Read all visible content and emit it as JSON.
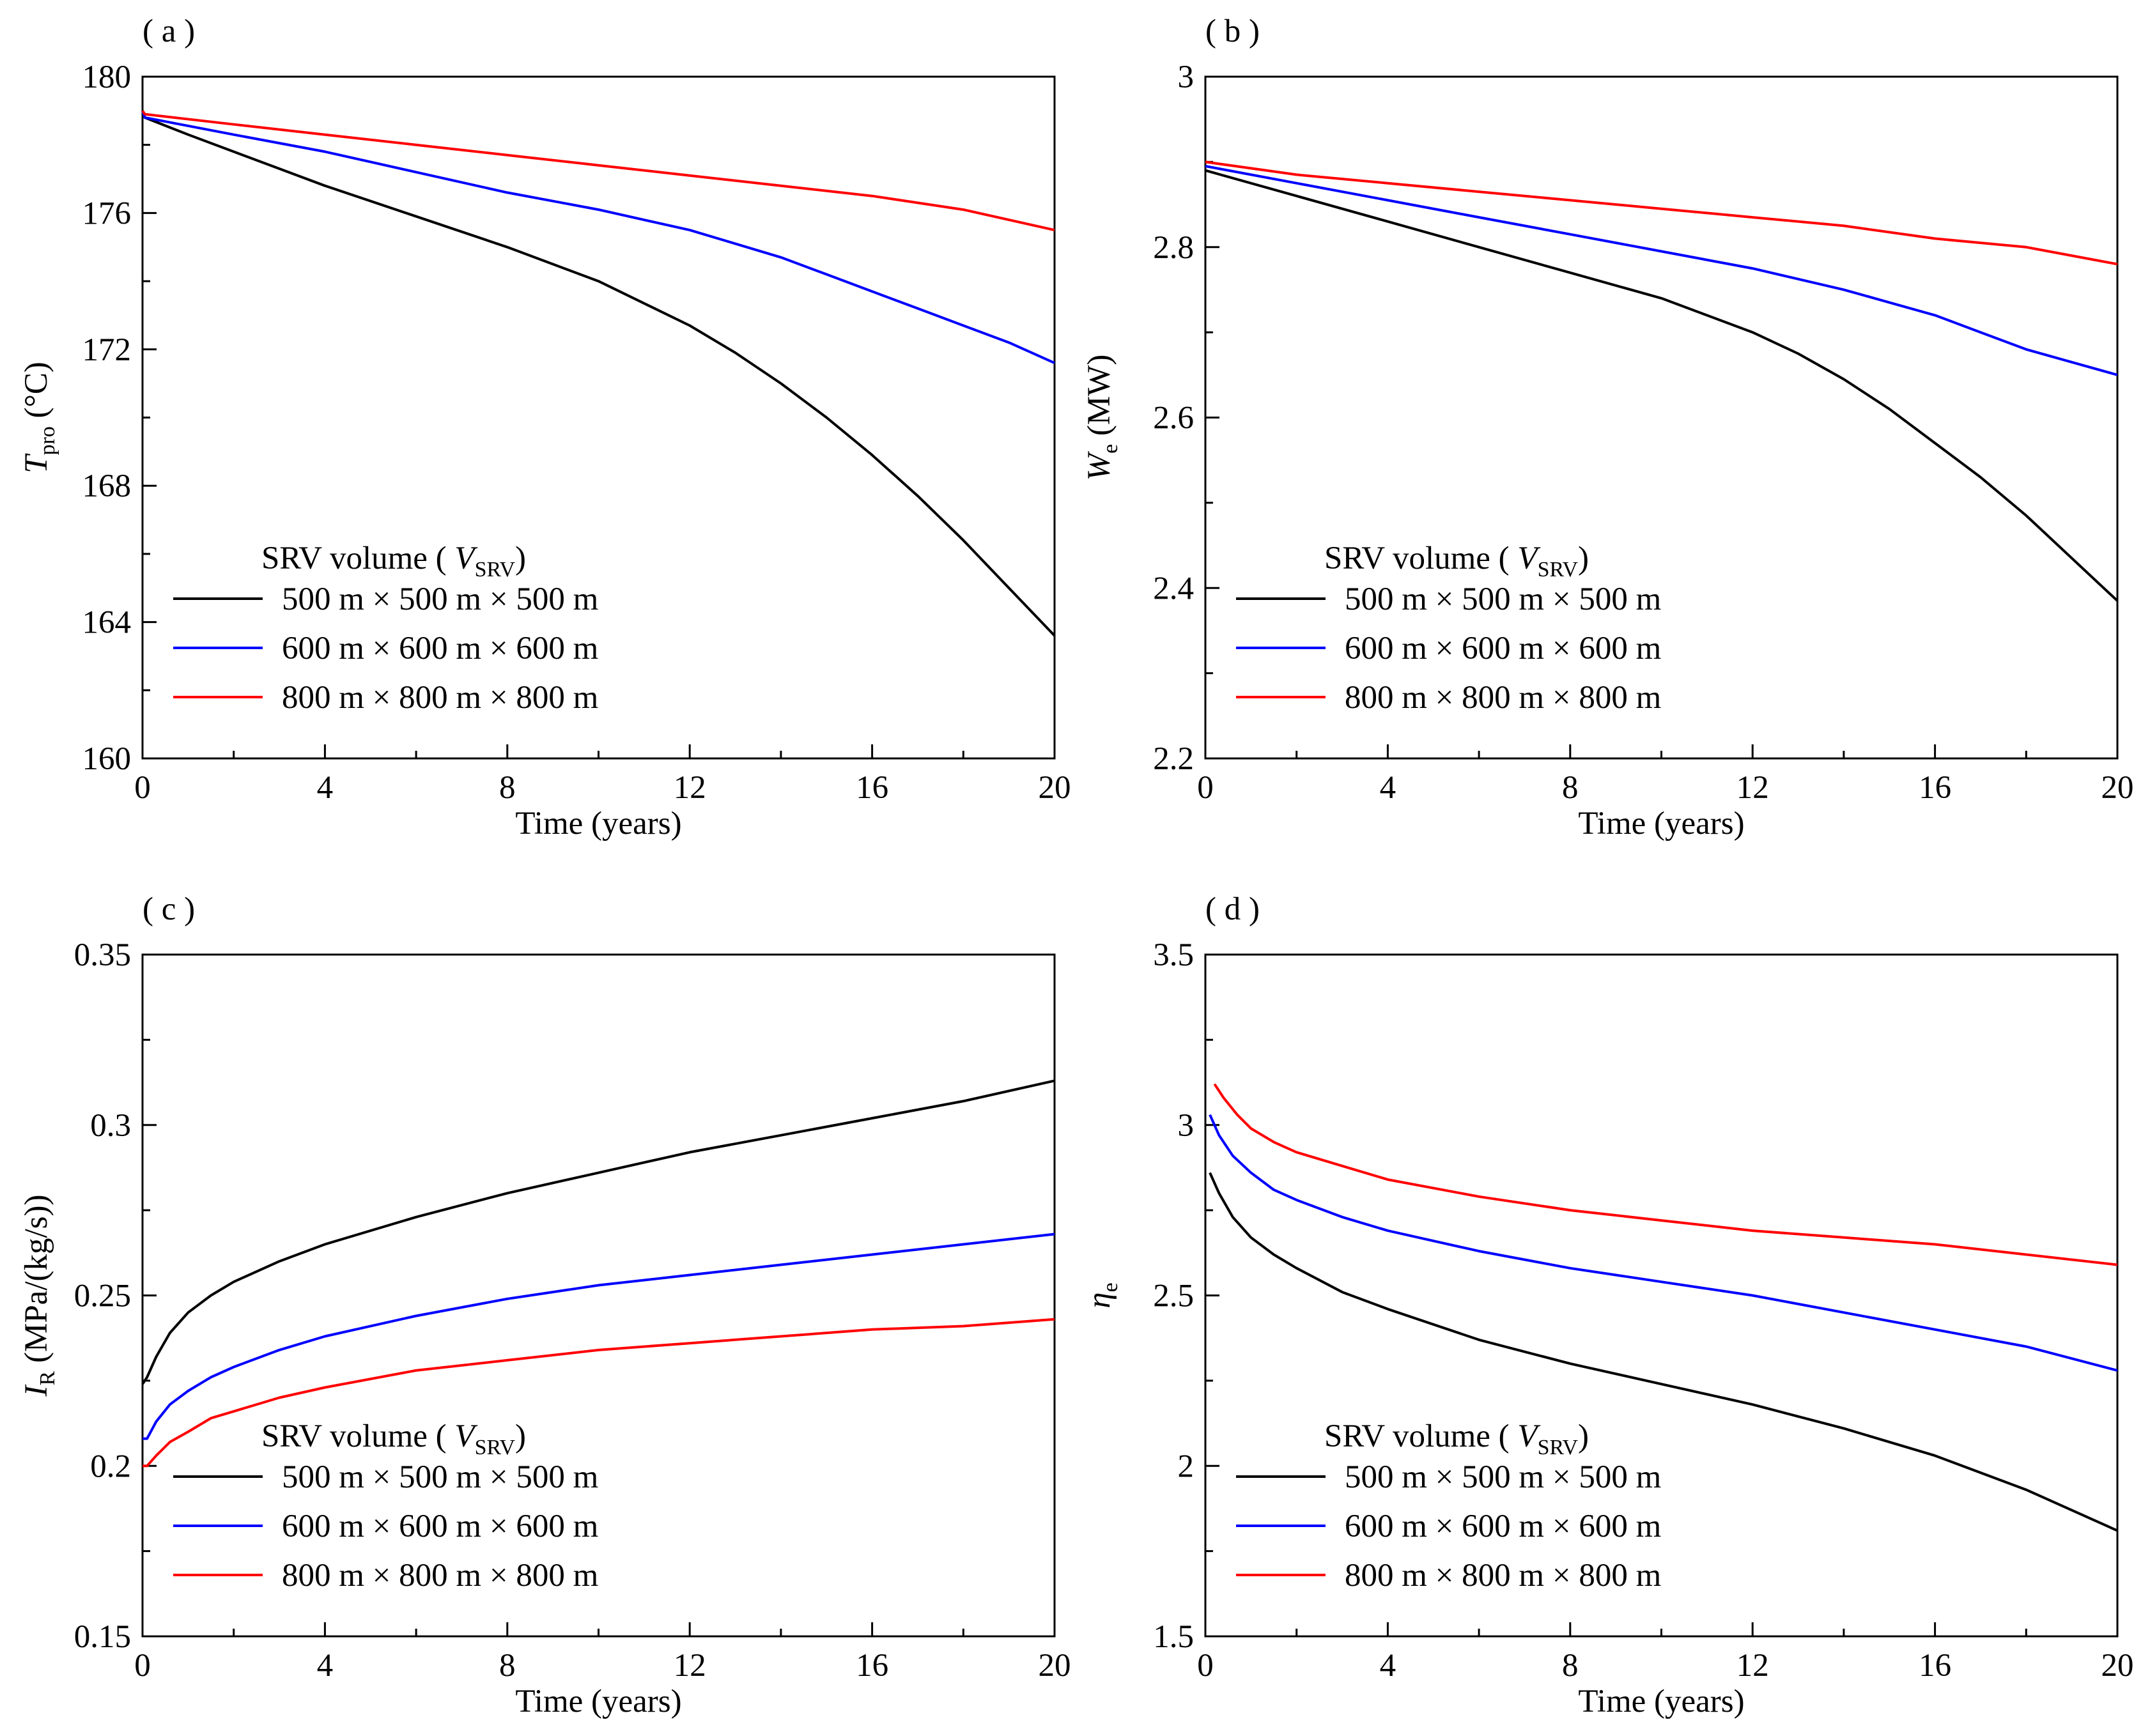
{
  "chart_data": [
    {
      "type": "line",
      "panel_label": "( a )",
      "xlabel": "Time (years)",
      "ylabel": {
        "main": "T",
        "sub": "pro",
        "unit": " (°C)"
      },
      "xlim": [
        0,
        20
      ],
      "ylim": [
        160,
        180
      ],
      "xticks": [
        0,
        4,
        8,
        12,
        16,
        20
      ],
      "xtick_labels": [
        "0",
        "4",
        "8",
        "12",
        "16",
        "20"
      ],
      "yticks": [
        160,
        164,
        168,
        172,
        176,
        180
      ],
      "ytick_labels": [
        "160",
        "164",
        "168",
        "172",
        "176",
        "180"
      ],
      "legend": {
        "title": "SRV volume (",
        "title_var": "V",
        "title_sub": "SRV",
        "title_end": ")",
        "placement": "lower-left"
      },
      "series": [
        {
          "name": "500 m × 500 m × 500 m",
          "color": "#000000",
          "x": [
            0,
            0.05,
            1,
            2,
            3,
            4,
            6,
            8,
            10,
            12,
            13,
            14,
            15,
            16,
            17,
            18,
            19,
            20
          ],
          "y": [
            179.0,
            178.8,
            178.3,
            177.8,
            177.3,
            176.8,
            175.9,
            175.0,
            174.0,
            172.7,
            171.9,
            171.0,
            170.0,
            168.9,
            167.7,
            166.4,
            165.0,
            163.6
          ]
        },
        {
          "name": "600 m × 600 m × 600 m",
          "color": "#0000ff",
          "x": [
            0,
            0.05,
            2,
            4,
            6,
            8,
            10,
            12,
            13,
            14,
            15,
            16,
            17,
            18,
            19,
            20
          ],
          "y": [
            179.0,
            178.8,
            178.3,
            177.8,
            177.2,
            176.6,
            176.1,
            175.5,
            175.1,
            174.7,
            174.2,
            173.7,
            173.2,
            172.7,
            172.2,
            171.6
          ]
        },
        {
          "name": "800 m × 800 m × 800 m",
          "color": "#ff0000",
          "x": [
            0,
            0.05,
            2,
            4,
            6,
            8,
            10,
            12,
            14,
            16,
            18,
            20
          ],
          "y": [
            179.0,
            178.9,
            178.6,
            178.3,
            178.0,
            177.7,
            177.4,
            177.1,
            176.8,
            176.5,
            176.1,
            175.5
          ]
        }
      ]
    },
    {
      "type": "line",
      "panel_label": "( b )",
      "xlabel": "Time (years)",
      "ylabel": {
        "main": "W",
        "sub": "e",
        "unit": " (MW)"
      },
      "xlim": [
        0,
        20
      ],
      "ylim": [
        2.2,
        3.0
      ],
      "xticks": [
        0,
        4,
        8,
        12,
        16,
        20
      ],
      "xtick_labels": [
        "0",
        "4",
        "8",
        "12",
        "16",
        "20"
      ],
      "yticks": [
        2.2,
        2.4,
        2.6,
        2.8,
        3.0
      ],
      "ytick_labels": [
        "2.2",
        "2.4",
        "2.6",
        "2.8",
        "3"
      ],
      "legend": {
        "title": "SRV volume (",
        "title_var": "V",
        "title_sub": "SRV",
        "title_end": ")",
        "placement": "lower-left"
      },
      "series": [
        {
          "name": "500 m × 500 m × 500 m",
          "color": "#000000",
          "x": [
            0,
            2,
            4,
            6,
            8,
            10,
            12,
            13,
            14,
            15,
            16,
            17,
            18,
            19,
            20
          ],
          "y": [
            2.89,
            2.86,
            2.83,
            2.8,
            2.77,
            2.74,
            2.7,
            2.675,
            2.645,
            2.61,
            2.57,
            2.53,
            2.485,
            2.435,
            2.385
          ]
        },
        {
          "name": "600 m × 600 m × 600 m",
          "color": "#0000ff",
          "x": [
            0,
            2,
            4,
            6,
            8,
            10,
            12,
            14,
            15,
            16,
            17,
            18,
            19,
            20
          ],
          "y": [
            2.895,
            2.875,
            2.855,
            2.835,
            2.815,
            2.795,
            2.775,
            2.75,
            2.735,
            2.72,
            2.7,
            2.68,
            2.665,
            2.65
          ]
        },
        {
          "name": "800 m × 800 m × 800 m",
          "color": "#ff0000",
          "x": [
            0,
            2,
            4,
            6,
            8,
            10,
            12,
            14,
            16,
            18,
            20
          ],
          "y": [
            2.9,
            2.885,
            2.875,
            2.865,
            2.855,
            2.845,
            2.835,
            2.825,
            2.81,
            2.8,
            2.78
          ]
        }
      ]
    },
    {
      "type": "line",
      "panel_label": "( c )",
      "xlabel": "Time (years)",
      "ylabel": {
        "main": "I",
        "sub": "R",
        "unit": " (MPa/(kg/s))"
      },
      "xlim": [
        0,
        20
      ],
      "ylim": [
        0.15,
        0.35
      ],
      "xticks": [
        0,
        4,
        8,
        12,
        16,
        20
      ],
      "xtick_labels": [
        "0",
        "4",
        "8",
        "12",
        "16",
        "20"
      ],
      "yticks": [
        0.15,
        0.2,
        0.25,
        0.3,
        0.35
      ],
      "ytick_labels": [
        "0.15",
        "0.2",
        "0.25",
        "0.3",
        "0.35"
      ],
      "legend": {
        "title": "SRV volume (",
        "title_var": "V",
        "title_sub": "SRV",
        "title_end": ")",
        "placement": "lower-left"
      },
      "series": [
        {
          "name": "500 m × 500 m × 500 m",
          "color": "#000000",
          "x": [
            0,
            0.1,
            0.3,
            0.6,
            1,
            1.5,
            2,
            3,
            4,
            6,
            8,
            10,
            12,
            14,
            16,
            18,
            20
          ],
          "y": [
            0.224,
            0.226,
            0.232,
            0.239,
            0.245,
            0.25,
            0.254,
            0.26,
            0.265,
            0.273,
            0.28,
            0.286,
            0.292,
            0.297,
            0.302,
            0.307,
            0.313
          ]
        },
        {
          "name": "600 m × 600 m × 600 m",
          "color": "#0000ff",
          "x": [
            0,
            0.1,
            0.3,
            0.6,
            1,
            1.5,
            2,
            3,
            4,
            6,
            8,
            10,
            12,
            14,
            16,
            18,
            20
          ],
          "y": [
            0.208,
            0.208,
            0.213,
            0.218,
            0.222,
            0.226,
            0.229,
            0.234,
            0.238,
            0.244,
            0.249,
            0.253,
            0.256,
            0.259,
            0.262,
            0.265,
            0.268
          ]
        },
        {
          "name": "800 m × 800 m × 800 m",
          "color": "#ff0000",
          "x": [
            0,
            0.1,
            0.3,
            0.6,
            1,
            1.5,
            2,
            3,
            4,
            6,
            8,
            10,
            12,
            14,
            16,
            18,
            20
          ],
          "y": [
            0.2,
            0.2,
            0.203,
            0.207,
            0.21,
            0.214,
            0.216,
            0.22,
            0.223,
            0.228,
            0.231,
            0.234,
            0.236,
            0.238,
            0.24,
            0.241,
            0.243
          ]
        }
      ]
    },
    {
      "type": "line",
      "panel_label": "( d )",
      "xlabel": "Time (years)",
      "ylabel": {
        "main": "η",
        "sub": "e",
        "unit": ""
      },
      "xlim": [
        0,
        20
      ],
      "ylim": [
        1.5,
        3.5
      ],
      "xticks": [
        0,
        4,
        8,
        12,
        16,
        20
      ],
      "xtick_labels": [
        "0",
        "4",
        "8",
        "12",
        "16",
        "20"
      ],
      "yticks": [
        1.5,
        2.0,
        2.5,
        3.0,
        3.5
      ],
      "ytick_labels": [
        "1.5",
        "2",
        "2.5",
        "3",
        "3.5"
      ],
      "legend": {
        "title": "SRV volume (",
        "title_var": "V",
        "title_sub": "SRV",
        "title_end": ")",
        "placement": "lower-left"
      },
      "series": [
        {
          "name": "500 m × 500 m × 500 m",
          "color": "#000000",
          "x": [
            0.1,
            0.3,
            0.6,
            1,
            1.5,
            2,
            3,
            4,
            6,
            8,
            10,
            12,
            14,
            16,
            18,
            20
          ],
          "y": [
            2.86,
            2.8,
            2.73,
            2.67,
            2.62,
            2.58,
            2.51,
            2.46,
            2.37,
            2.3,
            2.24,
            2.18,
            2.11,
            2.03,
            1.93,
            1.81
          ]
        },
        {
          "name": "600 m × 600 m × 600 m",
          "color": "#0000ff",
          "x": [
            0.1,
            0.3,
            0.6,
            1,
            1.5,
            2,
            3,
            4,
            6,
            8,
            10,
            12,
            14,
            16,
            18,
            20
          ],
          "y": [
            3.03,
            2.97,
            2.91,
            2.86,
            2.81,
            2.78,
            2.73,
            2.69,
            2.63,
            2.58,
            2.54,
            2.5,
            2.45,
            2.4,
            2.35,
            2.28
          ]
        },
        {
          "name": "800 m × 800 m × 800 m",
          "color": "#ff0000",
          "x": [
            0.2,
            0.4,
            0.7,
            1,
            1.5,
            2,
            3,
            4,
            6,
            8,
            10,
            12,
            14,
            16,
            18,
            20
          ],
          "y": [
            3.12,
            3.08,
            3.03,
            2.99,
            2.95,
            2.92,
            2.88,
            2.84,
            2.79,
            2.75,
            2.72,
            2.69,
            2.67,
            2.65,
            2.62,
            2.59
          ]
        }
      ]
    }
  ]
}
